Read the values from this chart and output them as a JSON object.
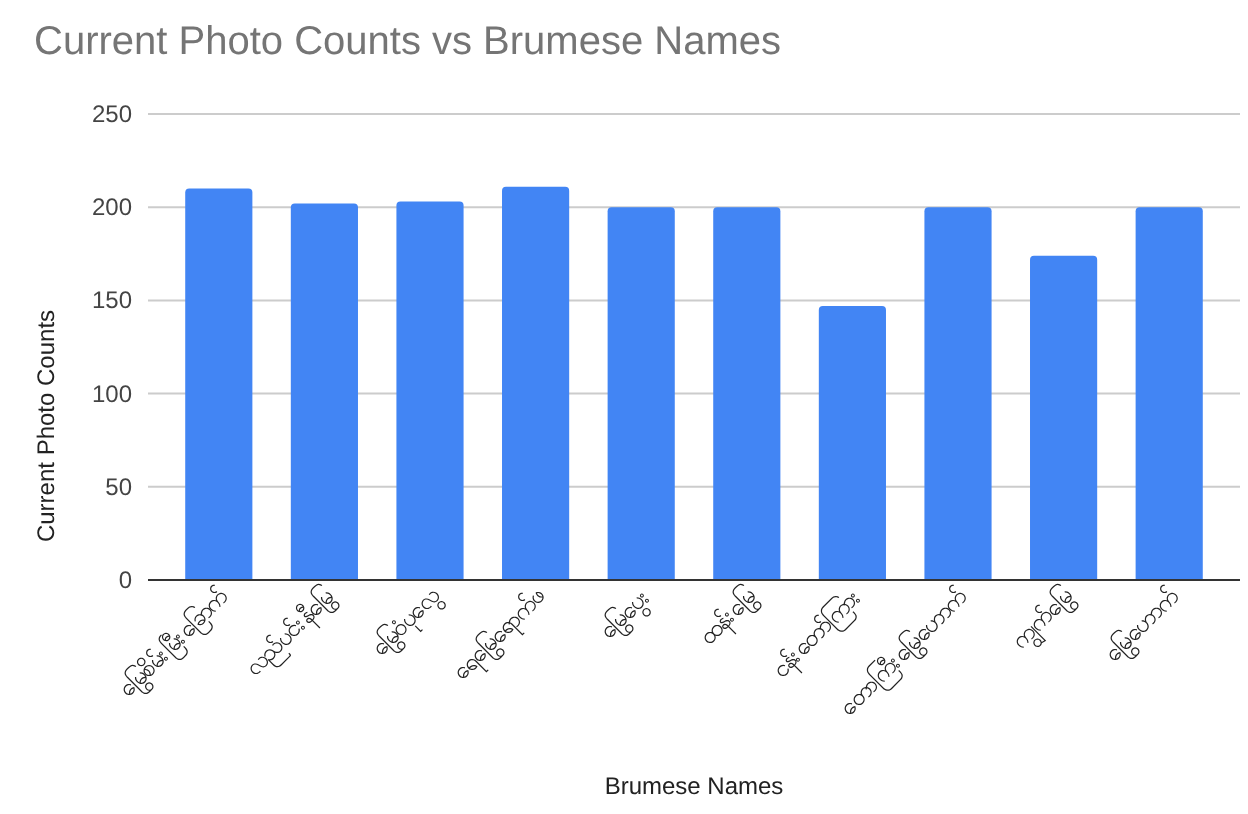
{
  "chart_data": {
    "type": "bar",
    "title": "Current Photo Counts vs Brumese Names",
    "xlabel": "Brumese Names",
    "ylabel": "Current Photo Counts",
    "categories": [
      "မြွေစိမ်းမြီးခြောက်",
      "လည်ပင်းနီမြွေ",
      "မြွေဝံပုလွေ",
      "ရေမြွေရောက်ဖ",
      "မြွေပွေး",
      "ထန်းမြွေ",
      "ငန်းတော်ကြား",
      "တောကြီးမြွေဟောက်",
      "ကျွက်မြွေ",
      "မြွေဟောက်"
    ],
    "values": [
      210,
      202,
      203,
      211,
      200,
      200,
      147,
      200,
      174,
      200
    ],
    "color": "#4285f4",
    "ylim": [
      0,
      250
    ],
    "yticks": [
      0,
      50,
      100,
      150,
      200,
      250
    ],
    "grid": "y"
  }
}
